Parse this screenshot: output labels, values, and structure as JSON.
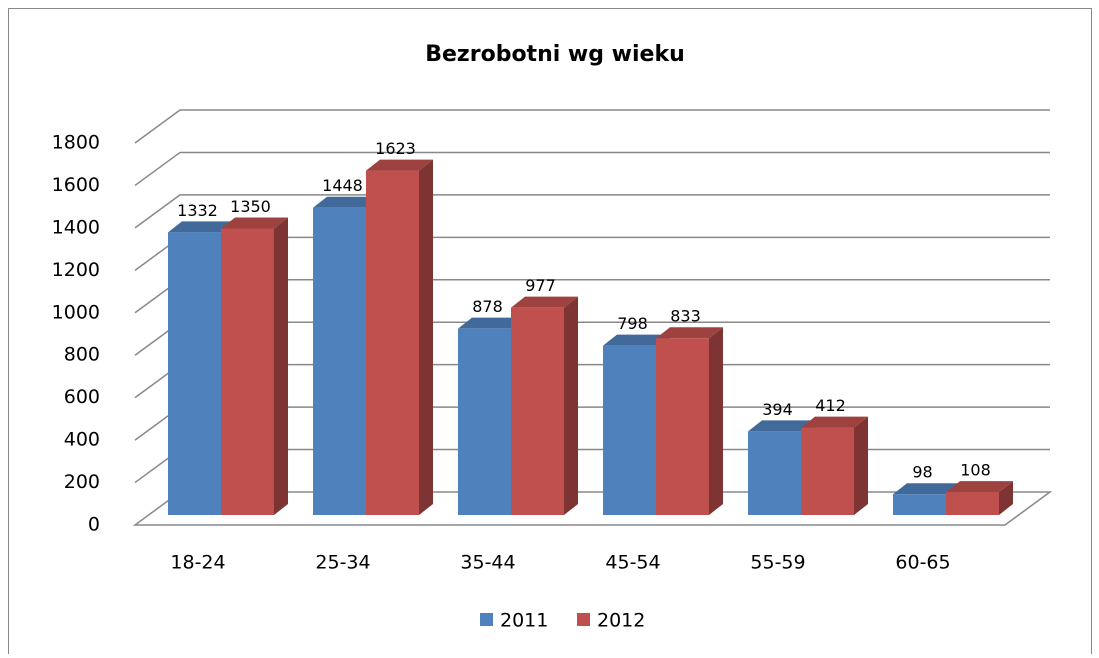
{
  "chart_data": {
    "type": "bar",
    "title": "Bezrobotni wg wieku",
    "categories": [
      "18-24",
      "25-34",
      "35-44",
      "45-54",
      "55-59",
      "60-65"
    ],
    "series": [
      {
        "name": "2011",
        "color": "#4f81bd",
        "values": [
          1332,
          1448,
          878,
          798,
          394,
          98
        ]
      },
      {
        "name": "2012",
        "color": "#c0504d",
        "values": [
          1350,
          1623,
          977,
          833,
          412,
          108
        ]
      }
    ],
    "ylim": [
      0,
      1800
    ],
    "yticks": [
      0,
      200,
      400,
      600,
      800,
      1000,
      1200,
      1400,
      1600,
      1800
    ],
    "grid": true,
    "legend": "bottom"
  }
}
